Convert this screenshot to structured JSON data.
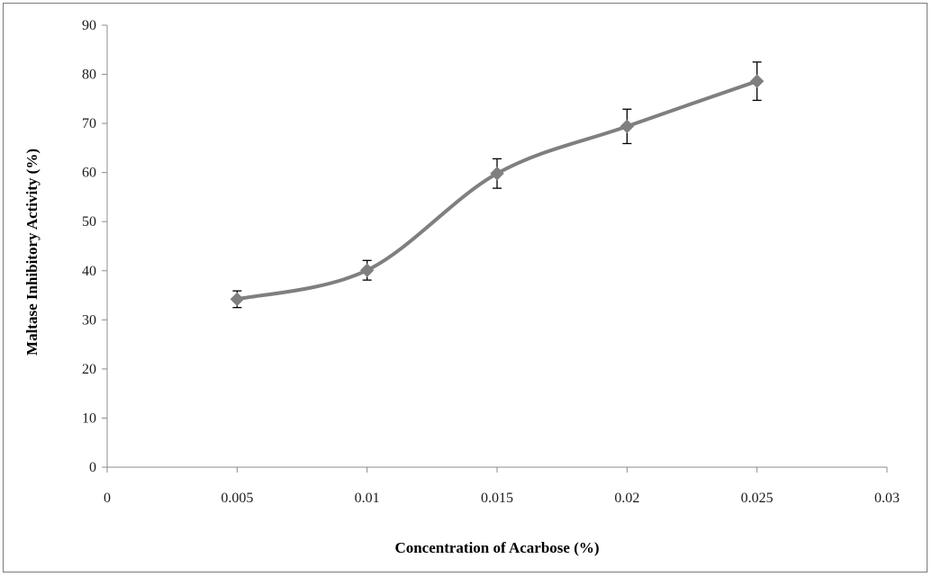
{
  "chart_data": {
    "type": "line",
    "title": "",
    "xlabel": "Concentration of Acarbose (%)",
    "ylabel": "Maltase Inhibitory Activity (%)",
    "xlim": [
      0,
      0.03
    ],
    "ylim": [
      0,
      90
    ],
    "x_ticks": [
      0,
      0.005,
      0.01,
      0.015,
      0.02,
      0.025,
      0.03
    ],
    "x_tick_labels": [
      "0",
      "0.005",
      "0.01",
      "0.015",
      "0.02",
      "0.025",
      "0.03"
    ],
    "y_ticks": [
      0,
      10,
      20,
      30,
      40,
      50,
      60,
      70,
      80,
      90
    ],
    "y_tick_labels": [
      "0",
      "10",
      "20",
      "30",
      "40",
      "50",
      "60",
      "70",
      "80",
      "90"
    ],
    "grid": false,
    "legend": "none",
    "series": [
      {
        "name": "Acarbose",
        "color": "#7f7f7f",
        "marker": "diamond",
        "smooth": true,
        "x": [
          0.005,
          0.01,
          0.015,
          0.02,
          0.025
        ],
        "y": [
          34.2,
          40.1,
          59.8,
          69.4,
          78.6
        ],
        "error": [
          1.7,
          2.0,
          3.0,
          3.5,
          3.9
        ]
      }
    ]
  }
}
